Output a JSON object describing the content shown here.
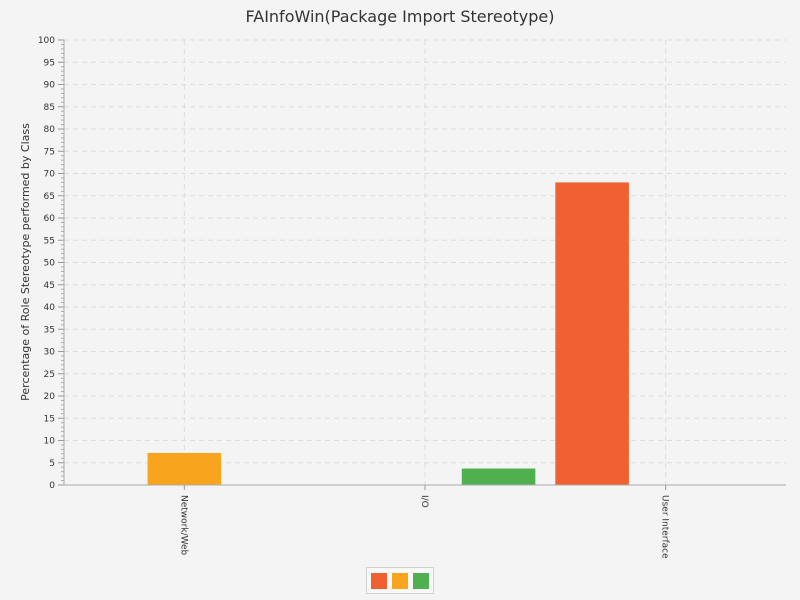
{
  "chart_data": {
    "type": "bar",
    "title": "FAInfoWin(Package Import Stereotype)",
    "ylabel": "Percentage of Role Stereotype performed by Class",
    "xlabel": "",
    "categories": [
      "Network/Web",
      "I/O",
      "User Interface"
    ],
    "ylim": [
      0,
      100
    ],
    "ytick_step": 5,
    "grid": true,
    "legend_position": "bottom-center",
    "series": [
      {
        "color": "#f06030",
        "values": [
          0,
          0,
          68
        ]
      },
      {
        "color": "#f8a41c",
        "values": [
          7.2,
          0,
          0
        ]
      },
      {
        "color": "#50b050",
        "values": [
          0,
          3.7,
          0
        ]
      }
    ]
  }
}
